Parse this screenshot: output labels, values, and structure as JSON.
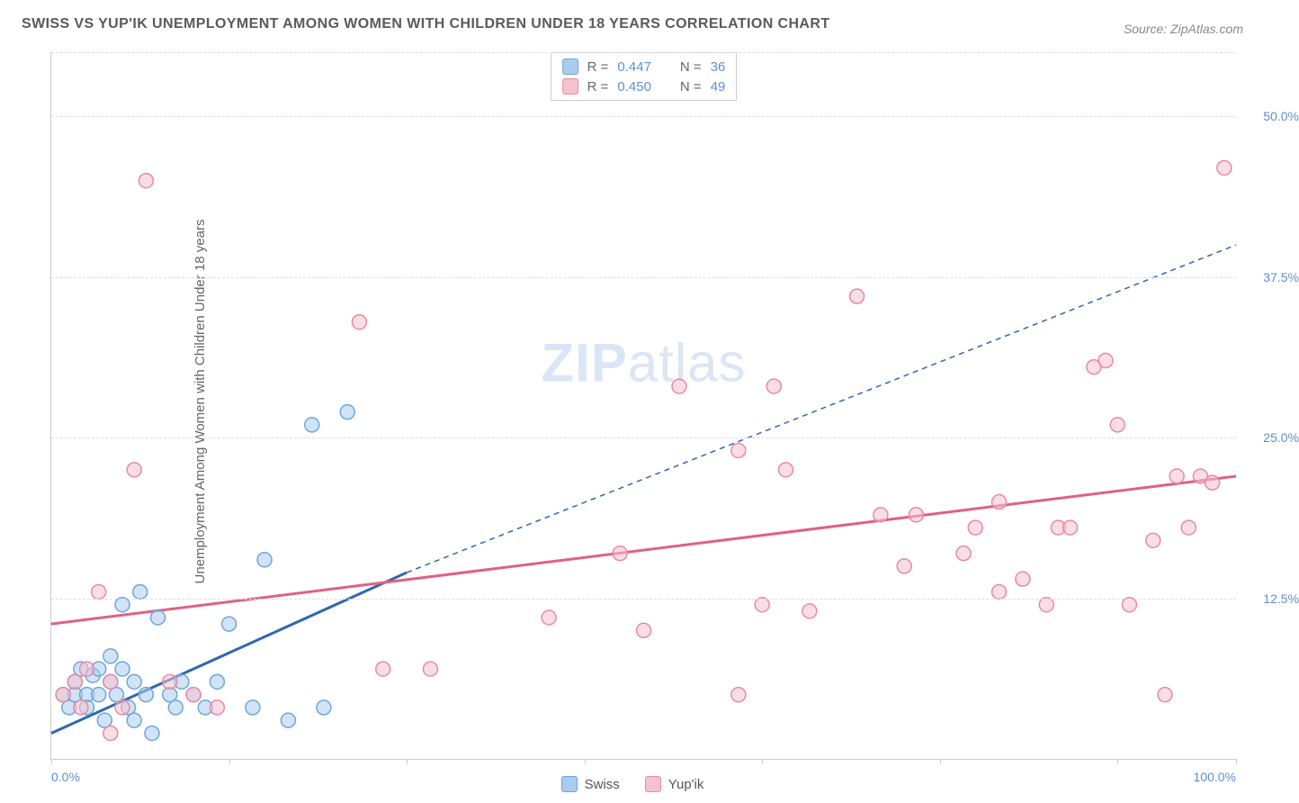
{
  "title": "SWISS VS YUP'IK UNEMPLOYMENT AMONG WOMEN WITH CHILDREN UNDER 18 YEARS CORRELATION CHART",
  "source": "Source: ZipAtlas.com",
  "y_axis_label": "Unemployment Among Women with Children Under 18 years",
  "watermark": {
    "bold": "ZIP",
    "rest": "atlas"
  },
  "chart": {
    "type": "scatter",
    "xlim": [
      0,
      100
    ],
    "ylim": [
      0,
      55
    ],
    "x_ticks": [
      0,
      15,
      30,
      45,
      60,
      75,
      90,
      100
    ],
    "x_tick_labels": {
      "0": "0.0%",
      "100": "100.0%"
    },
    "y_ticks": [
      12.5,
      25.0,
      37.5,
      50.0
    ],
    "y_tick_labels": [
      "12.5%",
      "25.0%",
      "37.5%",
      "50.0%"
    ],
    "grid_color": "#dddddd",
    "axis_color": "#cccccc",
    "background_color": "#ffffff",
    "point_radius": 8,
    "point_opacity": 0.55,
    "series": [
      {
        "name": "Swiss",
        "fill": "#a9cdee",
        "stroke": "#6ea6de",
        "R": "0.447",
        "N": "36",
        "trend": {
          "x1": 0,
          "y1": 2,
          "x2": 30,
          "y2": 14.5,
          "dash_x2": 100,
          "dash_y2": 40,
          "color": "#2f67b1"
        },
        "points": [
          [
            1,
            5
          ],
          [
            1.5,
            4
          ],
          [
            2,
            6
          ],
          [
            2,
            5
          ],
          [
            2.5,
            7
          ],
          [
            3,
            5
          ],
          [
            3,
            4
          ],
          [
            3.5,
            6.5
          ],
          [
            4,
            7
          ],
          [
            4,
            5
          ],
          [
            4.5,
            3
          ],
          [
            5,
            6
          ],
          [
            5,
            8
          ],
          [
            5.5,
            5
          ],
          [
            6,
            7
          ],
          [
            6,
            12
          ],
          [
            6.5,
            4
          ],
          [
            7,
            6
          ],
          [
            7,
            3
          ],
          [
            7.5,
            13
          ],
          [
            8,
            5
          ],
          [
            8.5,
            2
          ],
          [
            9,
            11
          ],
          [
            10,
            5
          ],
          [
            10.5,
            4
          ],
          [
            11,
            6
          ],
          [
            12,
            5
          ],
          [
            13,
            4
          ],
          [
            14,
            6
          ],
          [
            15,
            10.5
          ],
          [
            17,
            4
          ],
          [
            18,
            15.5
          ],
          [
            20,
            3
          ],
          [
            22,
            26
          ],
          [
            23,
            4
          ],
          [
            25,
            27
          ]
        ]
      },
      {
        "name": "Yup'ik",
        "fill": "#f4c3cf",
        "stroke": "#e88aa2",
        "R": "0.450",
        "N": "49",
        "trend": {
          "x1": 0,
          "y1": 10.5,
          "x2": 100,
          "y2": 22,
          "color": "#e26083"
        },
        "points": [
          [
            1,
            5
          ],
          [
            2,
            6
          ],
          [
            2.5,
            4
          ],
          [
            3,
            7
          ],
          [
            4,
            13
          ],
          [
            5,
            6
          ],
          [
            5,
            2
          ],
          [
            6,
            4
          ],
          [
            7,
            22.5
          ],
          [
            8,
            45
          ],
          [
            10,
            6
          ],
          [
            12,
            5
          ],
          [
            14,
            4
          ],
          [
            26,
            34
          ],
          [
            28,
            7
          ],
          [
            32,
            7
          ],
          [
            42,
            11
          ],
          [
            48,
            16
          ],
          [
            50,
            10
          ],
          [
            53,
            29
          ],
          [
            58,
            24
          ],
          [
            58,
            5
          ],
          [
            60,
            12
          ],
          [
            61,
            29
          ],
          [
            62,
            22.5
          ],
          [
            64,
            11.5
          ],
          [
            68,
            36
          ],
          [
            70,
            19
          ],
          [
            72,
            15
          ],
          [
            73,
            19
          ],
          [
            77,
            16
          ],
          [
            78,
            18
          ],
          [
            80,
            13
          ],
          [
            80,
            20
          ],
          [
            82,
            14
          ],
          [
            84,
            12
          ],
          [
            85,
            18
          ],
          [
            86,
            18
          ],
          [
            88,
            30.5
          ],
          [
            89,
            31
          ],
          [
            90,
            26
          ],
          [
            91,
            12
          ],
          [
            93,
            17
          ],
          [
            94,
            5
          ],
          [
            95,
            22
          ],
          [
            96,
            18
          ],
          [
            97,
            22
          ],
          [
            98,
            21.5
          ],
          [
            99,
            46
          ]
        ]
      }
    ]
  },
  "legend_top": [
    {
      "swatch_fill": "#a9cdee",
      "swatch_stroke": "#6ea6de",
      "R": "0.447",
      "N": "36"
    },
    {
      "swatch_fill": "#f4c3cf",
      "swatch_stroke": "#e88aa2",
      "R": "0.450",
      "N": "49"
    }
  ],
  "legend_bottom": [
    {
      "swatch_fill": "#a9cdee",
      "swatch_stroke": "#6ea6de",
      "label": "Swiss"
    },
    {
      "swatch_fill": "#f4c3cf",
      "swatch_stroke": "#e88aa2",
      "label": "Yup'ik"
    }
  ]
}
